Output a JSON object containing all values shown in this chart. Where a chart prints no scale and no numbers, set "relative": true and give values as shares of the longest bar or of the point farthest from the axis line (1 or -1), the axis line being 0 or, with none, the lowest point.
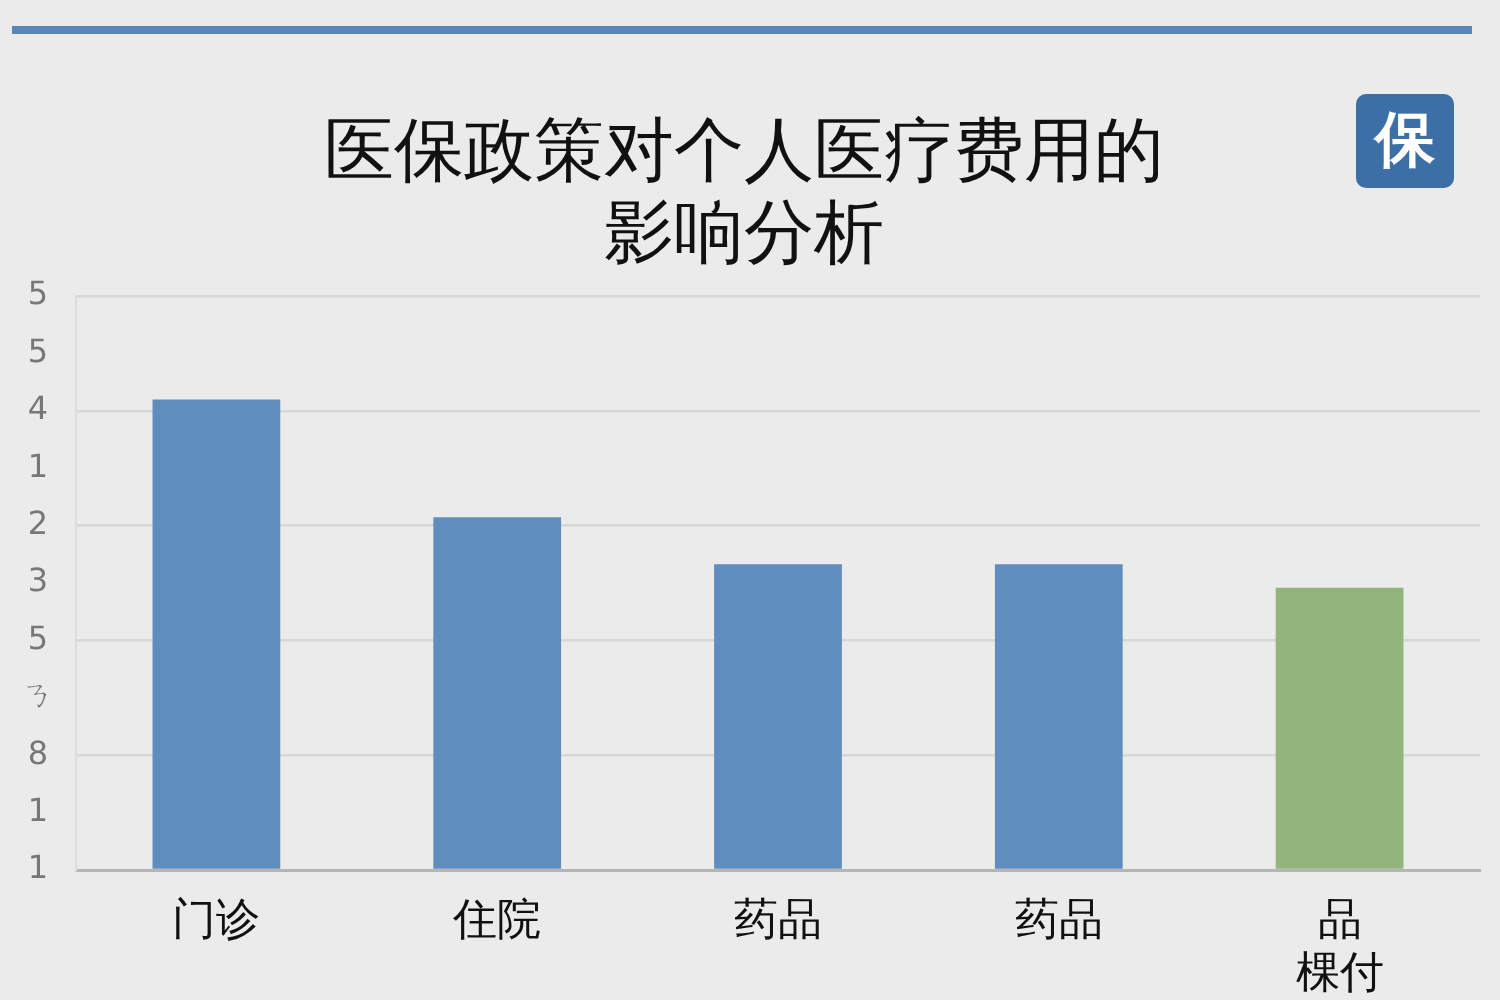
{
  "chart_data": {
    "type": "bar",
    "title": "医保政策对个人医疗费用的影响分析",
    "categories": [
      "门诊",
      "住院",
      "药品",
      "药品",
      "品棵付"
    ],
    "values": [
      1,
      0.75,
      0.65,
      0.65,
      0.6
    ],
    "colors": [
      "#5f8ebe",
      "#5f8ebe",
      "#5f8ebe",
      "#5f8ebe",
      "#93b47a"
    ],
    "relative": true,
    "grid": "y",
    "annotations": [
      "保",
      "1",
      "1",
      "8",
      "ㄋ",
      "5",
      "3",
      "2",
      "1",
      "4",
      "5",
      "5"
    ]
  }
}
